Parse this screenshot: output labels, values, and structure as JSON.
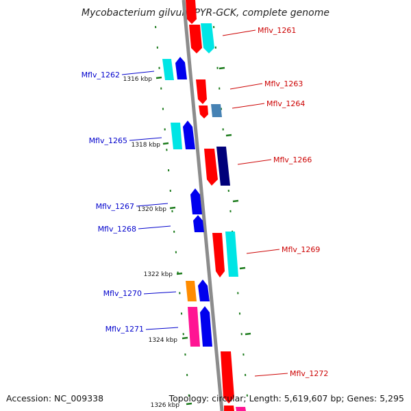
{
  "title": "Mycobacterium gilvum PYR-GCK, complete genome",
  "accession": "Accession: NC_009338",
  "topology": "Topology: circular; Length: 5,619,607 bp; Genes: 5,295",
  "colors": {
    "backbone": "#8c8c8c",
    "tick": "#1a7a1a",
    "forward_label": "#cc0000",
    "reverse_label": "#0000cc",
    "red": "#ff0000",
    "cyan": "#00e5e5",
    "blue": "#0000ee",
    "navy": "#00007a",
    "steelblue": "#4682b4",
    "orange": "#ff8c00",
    "magenta": "#ff1493"
  },
  "ticks": [
    {
      "label": "1316 kbp"
    },
    {
      "label": "1318 kbp"
    },
    {
      "label": "1320 kbp"
    },
    {
      "label": "1322 kbp"
    },
    {
      "label": "1324 kbp"
    },
    {
      "label": "1326 kbp"
    }
  ],
  "genes": [
    {
      "name": "Mflv_1261",
      "strand": "forward"
    },
    {
      "name": "Mflv_1262",
      "strand": "reverse"
    },
    {
      "name": "Mflv_1263",
      "strand": "forward"
    },
    {
      "name": "Mflv_1264",
      "strand": "forward"
    },
    {
      "name": "Mflv_1265",
      "strand": "reverse"
    },
    {
      "name": "Mflv_1266",
      "strand": "forward"
    },
    {
      "name": "Mflv_1267",
      "strand": "reverse"
    },
    {
      "name": "Mflv_1268",
      "strand": "reverse"
    },
    {
      "name": "Mflv_1269",
      "strand": "forward"
    },
    {
      "name": "Mflv_1270",
      "strand": "reverse"
    },
    {
      "name": "Mflv_1271",
      "strand": "reverse"
    },
    {
      "name": "Mflv_1272",
      "strand": "forward"
    }
  ]
}
